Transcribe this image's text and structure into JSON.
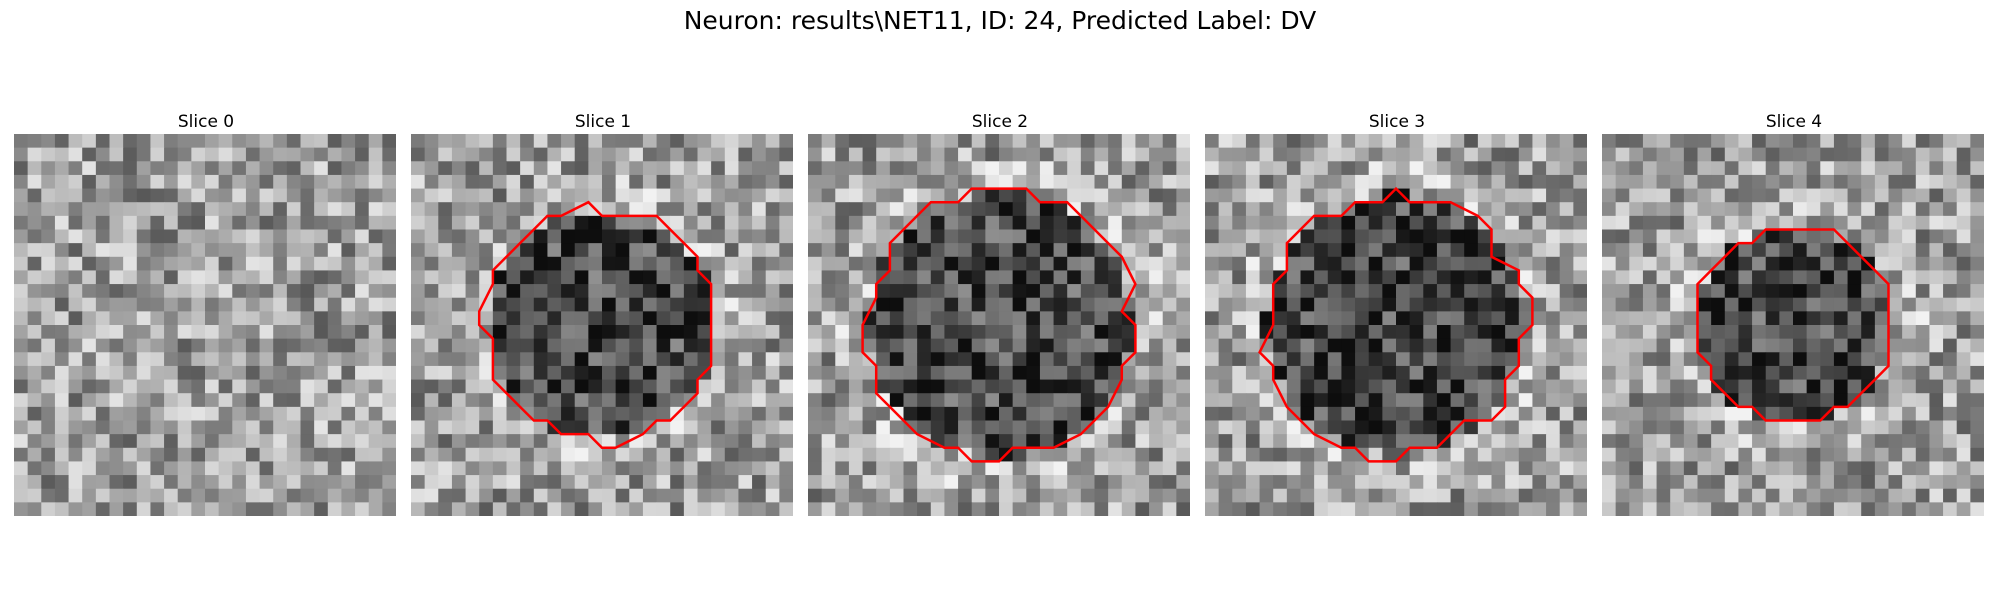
{
  "figure": {
    "title": "Neuron: results\\NET11, ID: 24, Predicted Label: DV"
  },
  "slices": [
    {
      "title": "Slice 0",
      "has_contour": false,
      "center_dark": 0.0,
      "radius": 0.0,
      "seed": 11
    },
    {
      "title": "Slice 1",
      "has_contour": true,
      "center_dark": 0.55,
      "radius": 0.3,
      "seed": 23
    },
    {
      "title": "Slice 2",
      "has_contour": true,
      "center_dark": 0.55,
      "radius": 0.35,
      "seed": 37
    },
    {
      "title": "Slice 3",
      "has_contour": true,
      "center_dark": 0.6,
      "radius": 0.34,
      "seed": 41
    },
    {
      "title": "Slice 4",
      "has_contour": true,
      "center_dark": 0.55,
      "radius": 0.26,
      "seed": 53
    }
  ],
  "colors": {
    "contour": "#ff0000"
  }
}
